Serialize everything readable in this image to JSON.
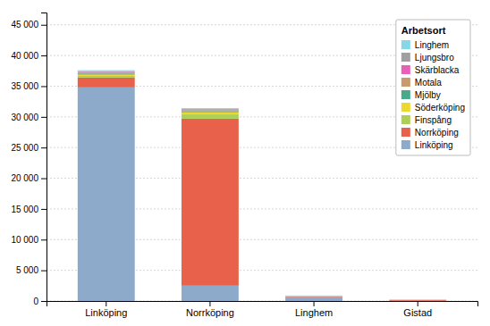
{
  "chart_data": {
    "type": "bar",
    "stacked": true,
    "categories": [
      "Linköping",
      "Norrköping",
      "Linghem",
      "Gistad"
    ],
    "legend_title": "Arbetsort",
    "series": [
      {
        "name": "Linköping",
        "color": "#8EAACB",
        "values": [
          34800,
          2500,
          650,
          30
        ]
      },
      {
        "name": "Norrköping",
        "color": "#E8614A",
        "values": [
          1600,
          27200,
          80,
          150
        ]
      },
      {
        "name": "Finspång",
        "color": "#ADCF56",
        "values": [
          280,
          700,
          20,
          5
        ]
      },
      {
        "name": "Söderköping",
        "color": "#EDD830",
        "values": [
          200,
          350,
          15,
          5
        ]
      },
      {
        "name": "Mjölby",
        "color": "#49AA8A",
        "values": [
          180,
          180,
          10,
          5
        ]
      },
      {
        "name": "Motala",
        "color": "#C99A6B",
        "values": [
          160,
          120,
          10,
          5
        ]
      },
      {
        "name": "Skärblacka",
        "color": "#E860B8",
        "values": [
          120,
          120,
          10,
          5
        ]
      },
      {
        "name": "Ljungsbro",
        "color": "#A0A0A0",
        "values": [
          130,
          120,
          15,
          5
        ]
      },
      {
        "name": "Linghem",
        "color": "#86D8E8",
        "values": [
          130,
          130,
          90,
          5
        ]
      }
    ],
    "ylim": [
      0,
      47000
    ],
    "yticks": [
      0,
      {
        "value": 5000,
        "label": "5 000"
      },
      {
        "value": 10000,
        "label": "10 000"
      },
      {
        "value": 15000,
        "label": "15 000"
      },
      {
        "value": 20000,
        "label": "20 000"
      },
      {
        "value": 25000,
        "label": "25 000"
      },
      {
        "value": 30000,
        "label": "30 000"
      },
      {
        "value": 35000,
        "label": "35 000"
      },
      {
        "value": 40000,
        "label": "40 000"
      },
      {
        "value": 45000,
        "label": "45 000"
      }
    ],
    "grid": true,
    "legend": "upper right"
  }
}
